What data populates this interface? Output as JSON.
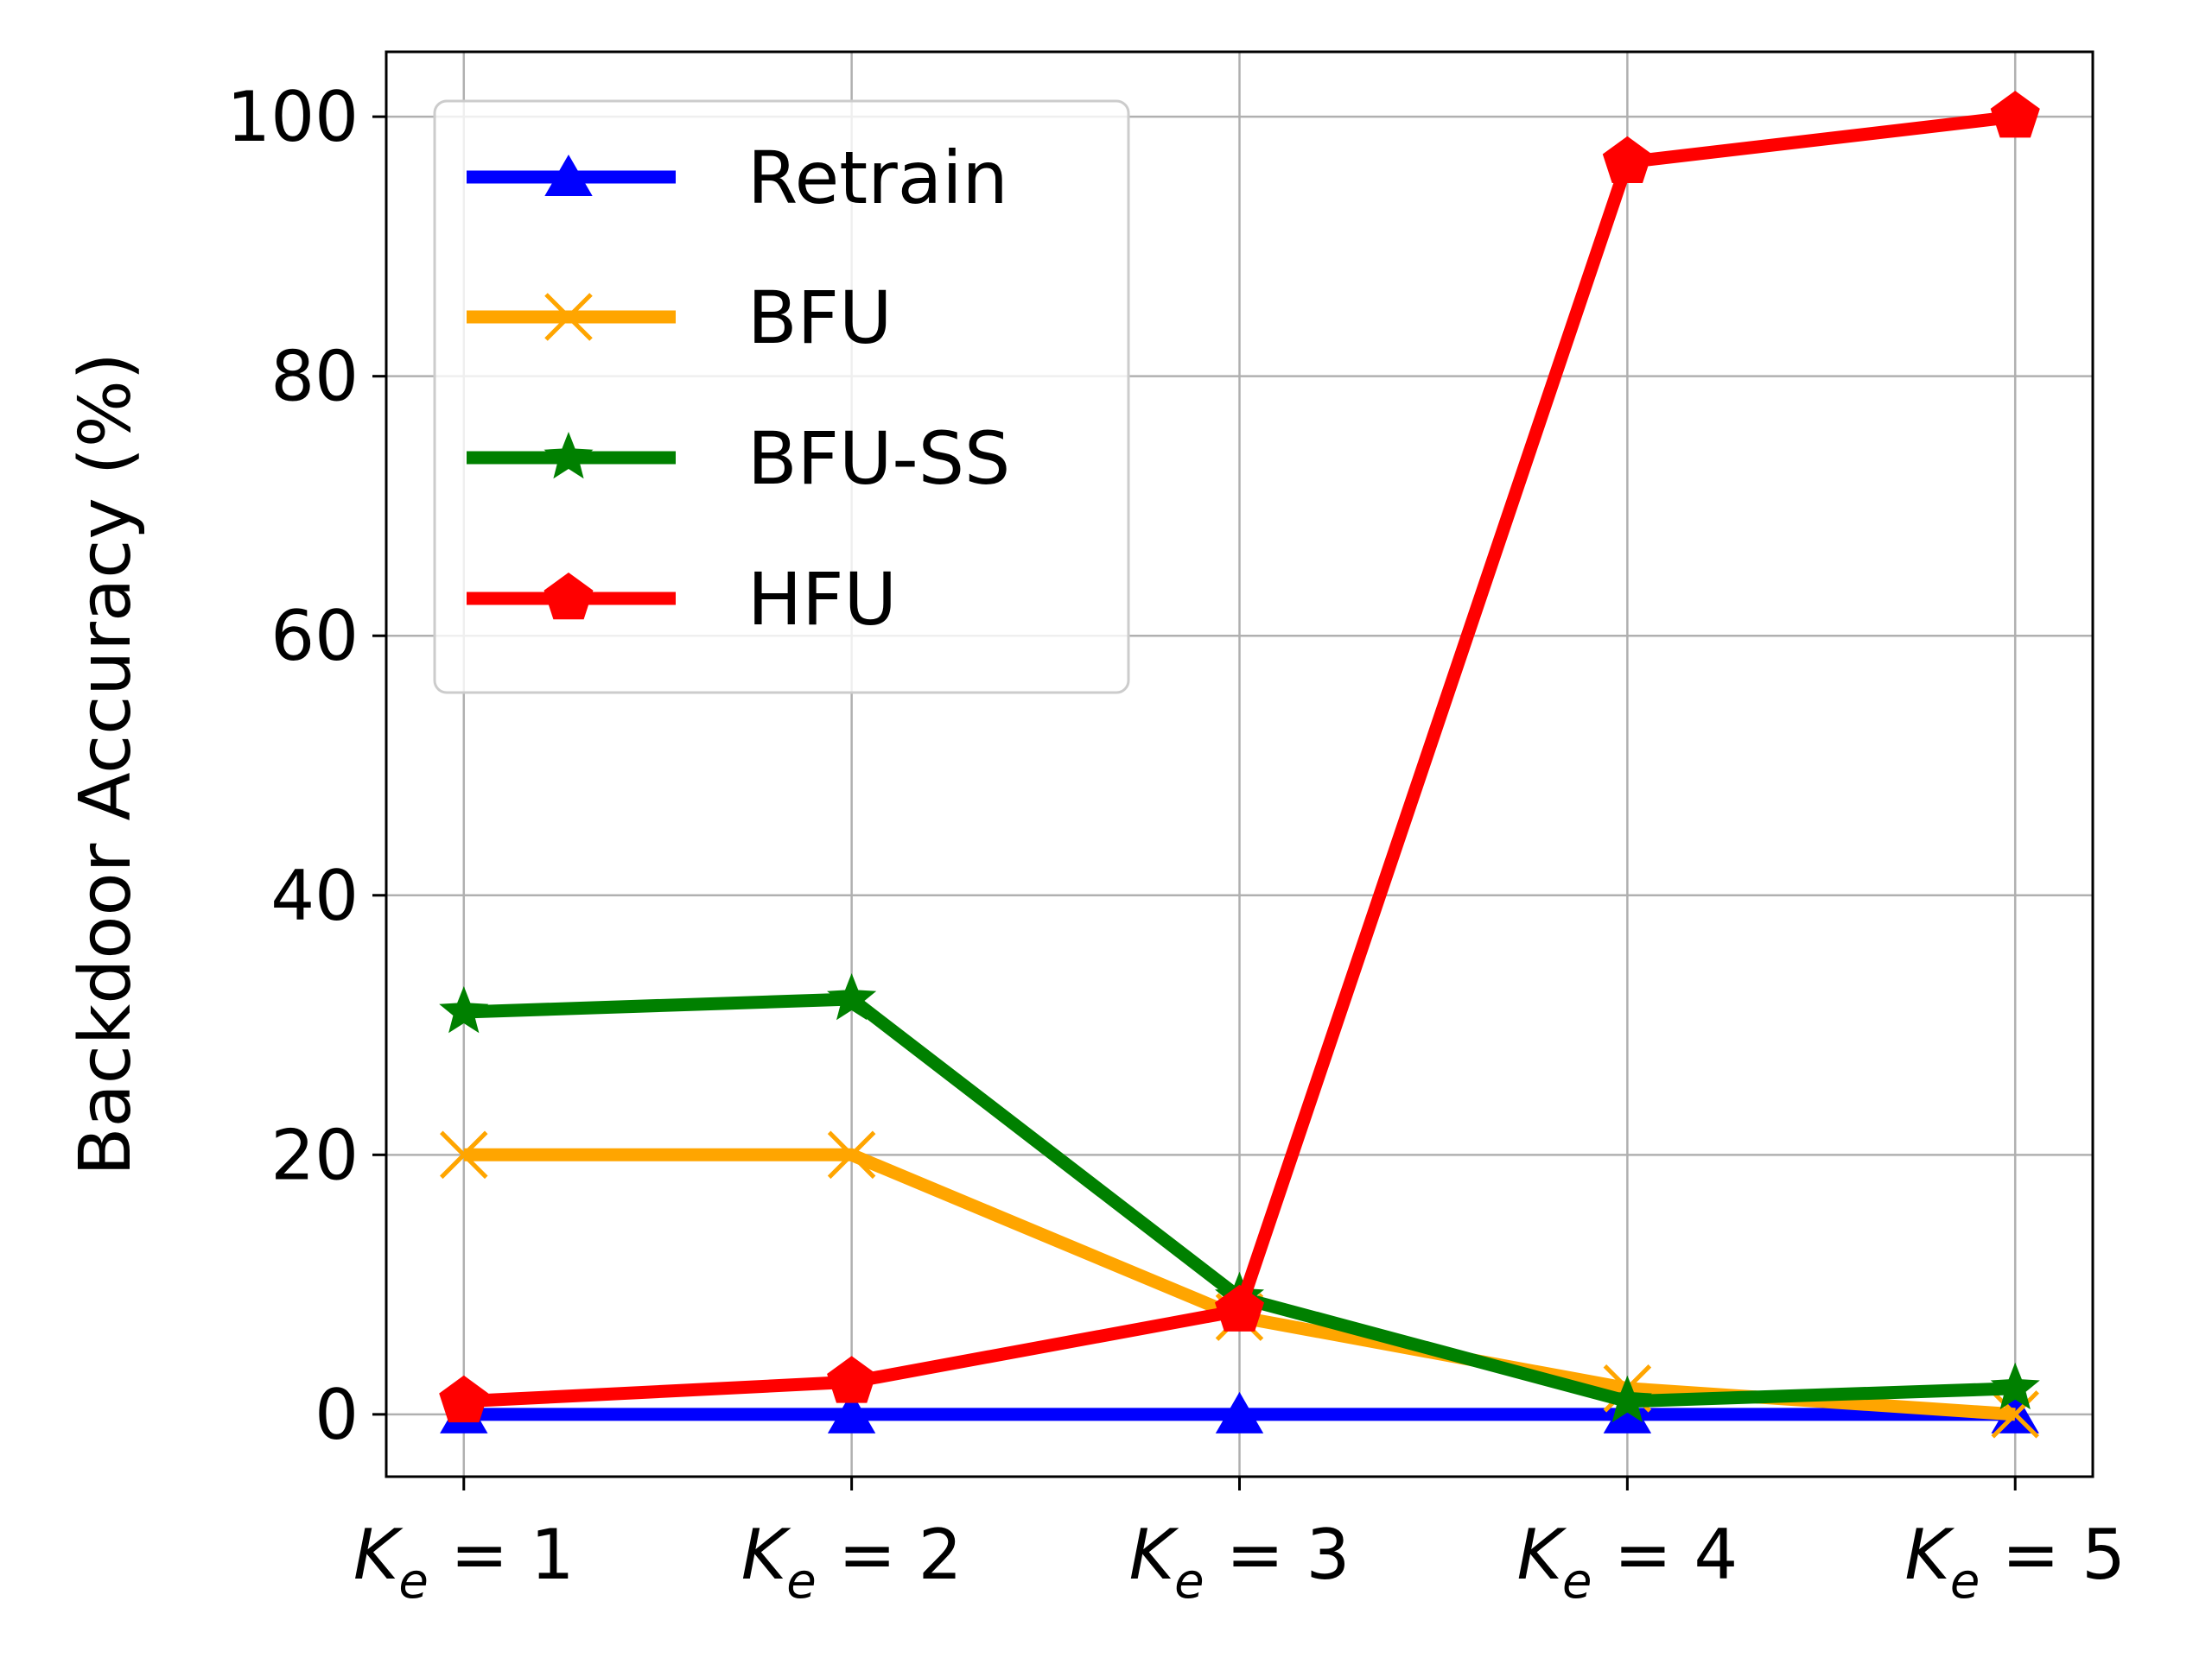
{
  "chart_data": {
    "type": "line",
    "xlabel": "",
    "ylabel": "Backdoor Accuracy (%)",
    "x_tick_labels": [
      {
        "main": "K",
        "sub": "e",
        "rest": " = 1"
      },
      {
        "main": "K",
        "sub": "e",
        "rest": " = 2"
      },
      {
        "main": "K",
        "sub": "e",
        "rest": " = 3"
      },
      {
        "main": "K",
        "sub": "e",
        "rest": " = 4"
      },
      {
        "main": "K",
        "sub": "e",
        "rest": " = 5"
      }
    ],
    "x": [
      1,
      2,
      3,
      4,
      5
    ],
    "xlim": [
      0.8,
      5.2
    ],
    "ylim": [
      -4.8,
      105
    ],
    "yticks": [
      0,
      20,
      40,
      60,
      80,
      100
    ],
    "grid": true,
    "legend_placement": "top-left",
    "series": [
      {
        "name": "Retrain",
        "color": "#0000ff",
        "marker": "triangle",
        "values": [
          0,
          0,
          0,
          0,
          0
        ]
      },
      {
        "name": "BFU",
        "color": "#ffa500",
        "marker": "x",
        "values": [
          20,
          20,
          7.5,
          2,
          0
        ]
      },
      {
        "name": "BFU-SS",
        "color": "#008000",
        "marker": "star",
        "values": [
          31,
          32,
          9,
          1,
          2
        ]
      },
      {
        "name": "HFU",
        "color": "#ff0000",
        "marker": "pentagon",
        "values": [
          1,
          2.5,
          8,
          96.5,
          100
        ]
      }
    ]
  }
}
